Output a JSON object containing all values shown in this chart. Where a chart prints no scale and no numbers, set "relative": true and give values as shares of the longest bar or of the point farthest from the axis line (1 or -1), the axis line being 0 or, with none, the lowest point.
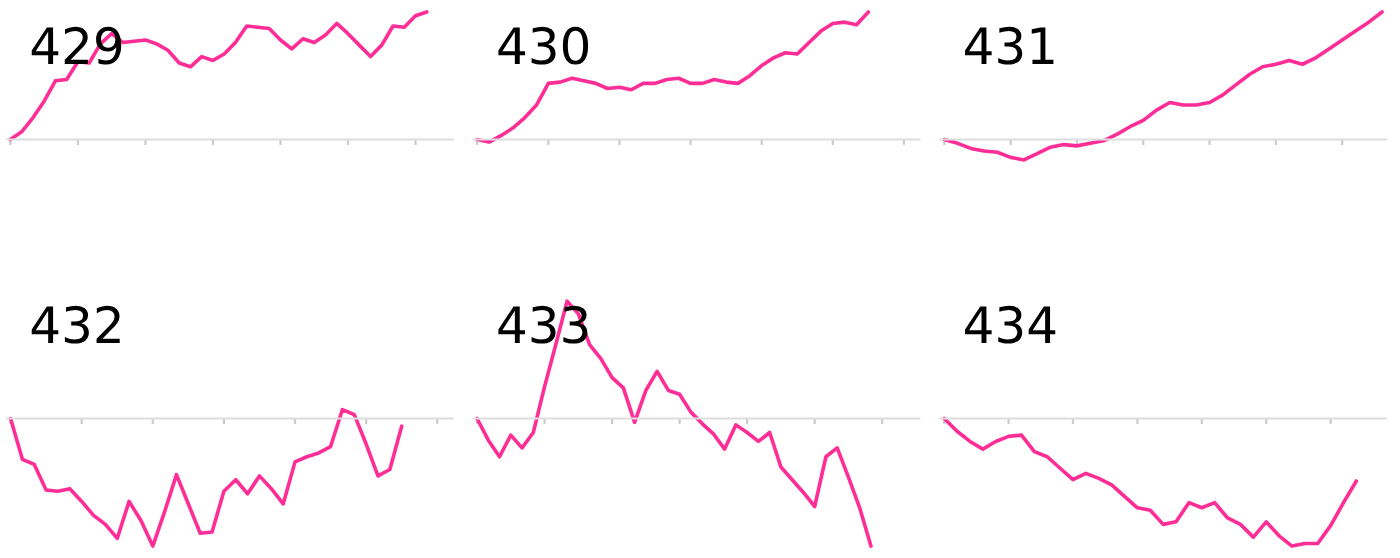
{
  "chart_data": [
    {
      "type": "line",
      "title": "429",
      "relative": true,
      "categories": [
        null,
        null,
        null,
        null,
        null,
        null,
        null,
        null,
        null,
        null,
        null,
        null,
        null,
        null,
        null,
        null,
        null,
        null,
        null,
        null,
        null,
        null,
        null,
        null,
        null,
        null,
        null,
        null,
        null,
        null,
        null,
        null,
        null,
        null,
        null,
        null,
        null,
        null,
        null,
        null
      ],
      "series": [
        {
          "color": "#ff2d96",
          "values": [
            0,
            0.06,
            0.17,
            0.3,
            0.46,
            0.47,
            0.61,
            0.6,
            0.75,
            0.83,
            0.76,
            0.77,
            0.78,
            0.75,
            0.7,
            0.6,
            0.57,
            0.65,
            0.62,
            0.67,
            0.76,
            0.89,
            0.88,
            0.87,
            0.78,
            0.71,
            0.79,
            0.76,
            0.82,
            0.91,
            0.83,
            0.74,
            0.65,
            0.74,
            0.89,
            0.88,
            0.97,
            1.0,
            null,
            null
          ]
        }
      ]
    },
    {
      "type": "line",
      "title": "430",
      "relative": true,
      "categories": [
        null,
        null,
        null,
        null,
        null,
        null,
        null,
        null,
        null,
        null,
        null,
        null,
        null,
        null,
        null,
        null,
        null,
        null,
        null,
        null,
        null,
        null,
        null,
        null,
        null,
        null,
        null,
        null,
        null,
        null,
        null,
        null,
        null,
        null,
        null,
        null,
        null,
        null
      ],
      "series": [
        {
          "color": "#ff2d96",
          "values": [
            0,
            -0.02,
            0.03,
            0.09,
            0.17,
            0.27,
            0.44,
            0.45,
            0.48,
            0.46,
            0.44,
            0.4,
            0.41,
            0.39,
            0.44,
            0.44,
            0.47,
            0.48,
            0.44,
            0.44,
            0.47,
            0.45,
            0.44,
            0.5,
            0.58,
            0.64,
            0.68,
            0.67,
            0.76,
            0.85,
            0.91,
            0.92,
            0.9,
            1.0,
            null,
            null,
            null,
            null
          ]
        }
      ]
    },
    {
      "type": "line",
      "title": "431",
      "relative": true,
      "categories": [
        null,
        null,
        null,
        null,
        null,
        null,
        null,
        null,
        null,
        null,
        null,
        null,
        null,
        null,
        null,
        null,
        null,
        null,
        null,
        null,
        null,
        null,
        null,
        null,
        null,
        null,
        null,
        null,
        null,
        null,
        null,
        null,
        null,
        null
      ],
      "series": [
        {
          "color": "#ff2d96",
          "values": [
            0,
            -0.03,
            -0.07,
            -0.09,
            -0.1,
            -0.14,
            -0.16,
            -0.11,
            -0.06,
            -0.04,
            -0.05,
            -0.03,
            -0.01,
            0.04,
            0.1,
            0.15,
            0.23,
            0.29,
            0.27,
            0.27,
            0.29,
            0.35,
            0.43,
            0.51,
            0.57,
            0.59,
            0.62,
            0.59,
            0.64,
            0.71,
            0.78,
            0.85,
            0.92,
            1.0
          ]
        }
      ]
    },
    {
      "type": "line",
      "title": "432",
      "relative": true,
      "categories": [
        null,
        null,
        null,
        null,
        null,
        null,
        null,
        null,
        null,
        null,
        null,
        null,
        null,
        null,
        null,
        null,
        null,
        null,
        null,
        null,
        null,
        null,
        null,
        null,
        null,
        null,
        null,
        null,
        null,
        null,
        null,
        null,
        null,
        null,
        null,
        null,
        null,
        null
      ],
      "series": [
        {
          "color": "#ff2d96",
          "values": [
            0,
            -0.32,
            -0.36,
            -0.56,
            -0.57,
            -0.55,
            -0.65,
            -0.76,
            -0.83,
            -0.94,
            -0.65,
            -0.8,
            -1.0,
            -0.73,
            -0.44,
            -0.67,
            -0.9,
            -0.89,
            -0.57,
            -0.48,
            -0.59,
            -0.45,
            -0.55,
            -0.67,
            -0.34,
            -0.3,
            -0.27,
            -0.22,
            0.07,
            0.03,
            -0.2,
            -0.45,
            -0.4,
            -0.06,
            null,
            null,
            null,
            null
          ]
        }
      ]
    },
    {
      "type": "line",
      "title": "433",
      "relative": true,
      "categories": [
        null,
        null,
        null,
        null,
        null,
        null,
        null,
        null,
        null,
        null,
        null,
        null,
        null,
        null,
        null,
        null,
        null,
        null,
        null,
        null,
        null,
        null,
        null,
        null,
        null,
        null,
        null,
        null,
        null,
        null,
        null,
        null,
        null,
        null,
        null,
        null,
        null,
        null,
        null,
        null
      ],
      "series": [
        {
          "color": "#ff2d96",
          "values": [
            0,
            -0.17,
            -0.3,
            -0.13,
            -0.23,
            -0.11,
            0.25,
            0.58,
            0.92,
            0.82,
            0.58,
            0.47,
            0.32,
            0.24,
            -0.03,
            0.22,
            0.37,
            0.22,
            0.19,
            0.05,
            -0.04,
            -0.12,
            -0.24,
            -0.05,
            -0.11,
            -0.18,
            -0.11,
            -0.38,
            -0.48,
            -0.58,
            -0.69,
            -0.3,
            -0.23,
            -0.46,
            -0.7,
            -1.0,
            null,
            null,
            null,
            null
          ]
        }
      ]
    },
    {
      "type": "line",
      "title": "434",
      "relative": true,
      "categories": [
        null,
        null,
        null,
        null,
        null,
        null,
        null,
        null,
        null,
        null,
        null,
        null,
        null,
        null,
        null,
        null,
        null,
        null,
        null,
        null,
        null,
        null,
        null,
        null,
        null,
        null,
        null,
        null,
        null,
        null,
        null,
        null,
        null,
        null,
        null
      ],
      "series": [
        {
          "color": "#ff2d96",
          "values": [
            0,
            -0.1,
            -0.18,
            -0.24,
            -0.18,
            -0.14,
            -0.13,
            -0.26,
            -0.3,
            -0.39,
            -0.48,
            -0.43,
            -0.47,
            -0.52,
            -0.61,
            -0.7,
            -0.72,
            -0.83,
            -0.81,
            -0.66,
            -0.7,
            -0.66,
            -0.78,
            -0.83,
            -0.93,
            -0.81,
            -0.92,
            -1.0,
            -0.98,
            -0.98,
            -0.84,
            -0.66,
            -0.49,
            null,
            null
          ]
        }
      ]
    }
  ]
}
